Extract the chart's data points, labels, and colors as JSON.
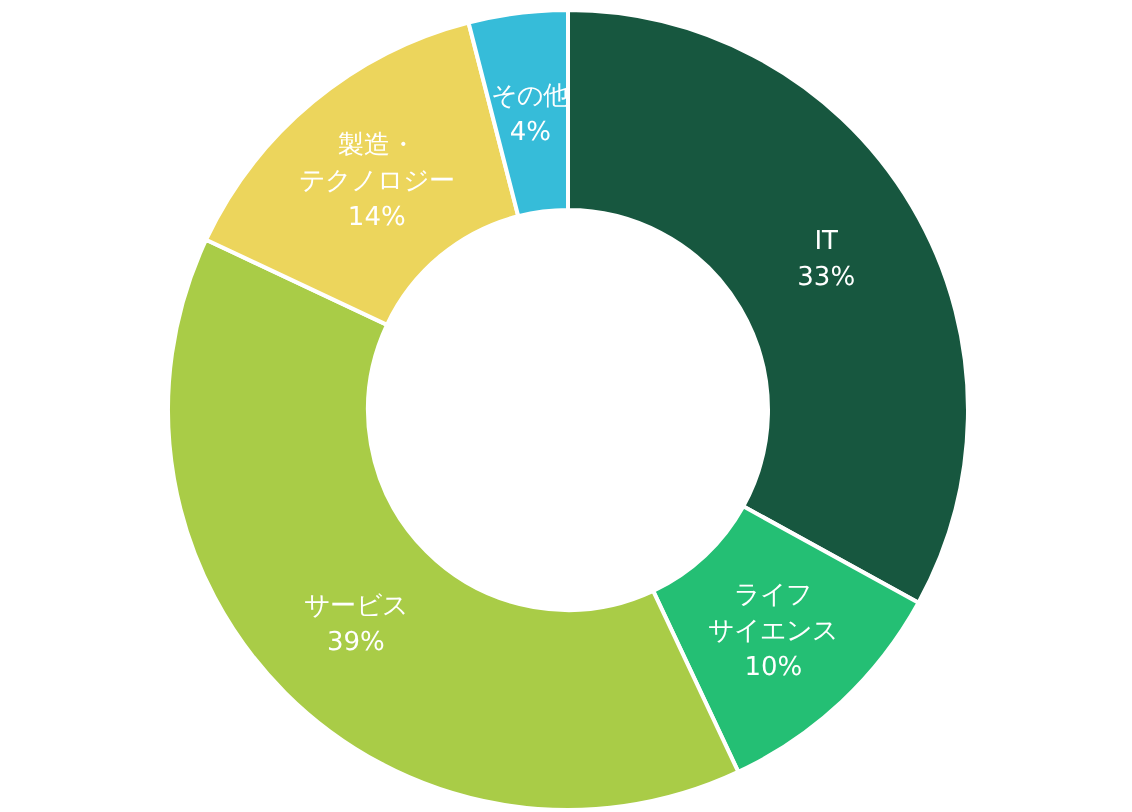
{
  "chart_data": {
    "type": "donut",
    "categories": [
      "IT",
      "ライフサイエンス",
      "サービス",
      "製造・テクノロジー",
      "その他"
    ],
    "values": [
      33,
      10,
      39,
      14,
      4
    ],
    "value_labels": [
      "33%",
      "10%",
      "39%",
      "14%",
      "4%"
    ],
    "colors": [
      "#17573f",
      "#24bf74",
      "#a9cc47",
      "#ecd55c",
      "#36bcd9"
    ]
  }
}
